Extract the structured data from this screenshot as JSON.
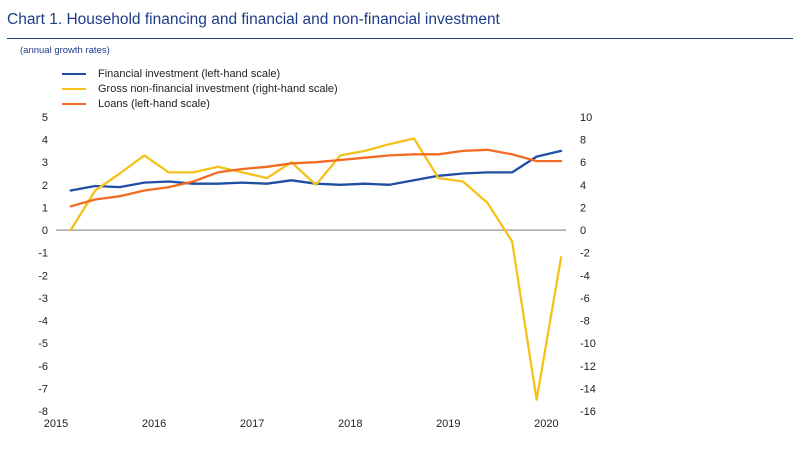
{
  "header": {
    "title": "Chart 1. Household financing and financial and non-financial investment",
    "subtitle": "(annual growth rates)"
  },
  "legend": [
    {
      "label": "Financial investment (left-hand scale)",
      "color": "#1f4ea3"
    },
    {
      "label": "Gross non-financial investment (right-hand scale)",
      "color": "#f5c21a"
    },
    {
      "label": "Loans (left-hand scale)",
      "color": "#f26b22"
    }
  ],
  "chart_data": {
    "type": "line",
    "x_ticks": [
      "2015",
      "2016",
      "2017",
      "2018",
      "2019",
      "2020"
    ],
    "x_range": [
      2015.0,
      2020.2
    ],
    "y_left": {
      "range": [
        -8,
        5
      ],
      "ticks": [
        "5",
        "4",
        "3",
        "2",
        "1",
        "0",
        "-1",
        "-2",
        "-3",
        "-4",
        "-5",
        "-6",
        "-7",
        "-8"
      ]
    },
    "y_right": {
      "range": [
        -16,
        10
      ],
      "ticks": [
        "10",
        "8",
        "6",
        "4",
        "2",
        "0",
        "-2",
        "-4",
        "-6",
        "-8",
        "-10",
        "-12",
        "-14",
        "-16"
      ]
    },
    "zero_line": true,
    "x": [
      2015.15,
      2015.4,
      2015.65,
      2015.9,
      2016.15,
      2016.4,
      2016.65,
      2016.9,
      2017.15,
      2017.4,
      2017.65,
      2017.9,
      2018.15,
      2018.4,
      2018.65,
      2018.9,
      2019.15,
      2019.4,
      2019.65,
      2019.9,
      2020.15
    ],
    "series": [
      {
        "name": "Financial investment (left-hand scale)",
        "axis": "left",
        "color": "#1f4ea3",
        "values": [
          1.75,
          1.95,
          1.9,
          2.1,
          2.15,
          2.05,
          2.05,
          2.1,
          2.05,
          2.2,
          2.05,
          2.0,
          2.05,
          2.0,
          2.2,
          2.4,
          2.5,
          2.55,
          2.55,
          3.25,
          3.5
        ]
      },
      {
        "name": "Gross non-financial investment (right-hand scale)",
        "axis": "right",
        "color": "#f5c21a",
        "values": [
          0.0,
          3.5,
          5.0,
          6.6,
          5.1,
          5.1,
          5.6,
          5.1,
          4.6,
          6.0,
          4.0,
          6.6,
          7.0,
          7.6,
          8.1,
          4.6,
          4.3,
          2.4,
          -1.0,
          -15.0,
          -2.4
        ]
      },
      {
        "name": "Loans (left-hand scale)",
        "axis": "left",
        "color": "#f26b22",
        "values": [
          1.05,
          1.35,
          1.5,
          1.75,
          1.9,
          2.15,
          2.55,
          2.7,
          2.8,
          2.95,
          3.0,
          3.1,
          3.2,
          3.3,
          3.35,
          3.35,
          3.5,
          3.55,
          3.35,
          3.05,
          3.05
        ]
      }
    ]
  }
}
